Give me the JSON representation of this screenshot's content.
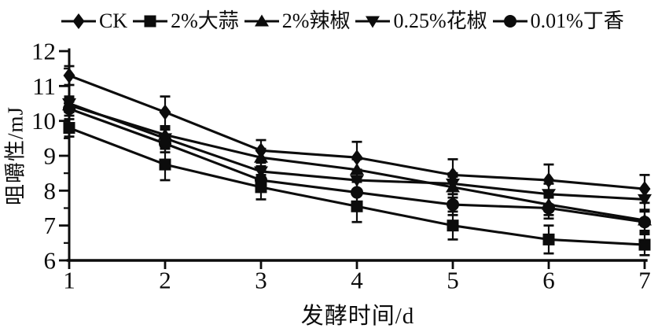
{
  "figure": {
    "background": "#ffffff",
    "ink_color": "#0c0c0c"
  },
  "chart_data": {
    "type": "line",
    "title": "",
    "xlabel": "发酵时间/d",
    "ylabel": "咀嚼性/mJ",
    "x": [
      1,
      2,
      3,
      4,
      5,
      6,
      7
    ],
    "x_tick_labels": [
      "1",
      "2",
      "3",
      "4",
      "5",
      "6",
      "7"
    ],
    "xlim": [
      1,
      7
    ],
    "ylim": [
      6,
      12
    ],
    "y_major_ticks": [
      6,
      7,
      8,
      9,
      10,
      11,
      12
    ],
    "y_minor_ticks": [
      6.5,
      7.5,
      8.5,
      9.5,
      10.5,
      11.5
    ],
    "grid": false,
    "error_bars": true,
    "legend_position": "top",
    "series": [
      {
        "name": "CK",
        "marker": "diamond",
        "values": [
          11.3,
          10.25,
          9.15,
          8.95,
          8.45,
          8.3,
          8.05
        ],
        "errors": [
          0.27,
          0.45,
          0.3,
          0.45,
          0.45,
          0.45,
          0.4
        ]
      },
      {
        "name": "2%大蒜",
        "marker": "square",
        "values": [
          9.8,
          8.75,
          8.1,
          7.55,
          7.0,
          6.6,
          6.45
        ],
        "errors": [
          0.25,
          0.45,
          0.35,
          0.45,
          0.4,
          0.4,
          0.3
        ]
      },
      {
        "name": "2%辣椒",
        "marker": "triangle-up",
        "values": [
          10.45,
          9.6,
          8.95,
          8.6,
          8.1,
          7.6,
          7.15
        ],
        "errors": [
          0.2,
          0.25,
          0.25,
          0.3,
          0.3,
          0.3,
          0.3
        ]
      },
      {
        "name": "0.25%花椒",
        "marker": "triangle-down",
        "values": [
          10.5,
          9.5,
          8.55,
          8.3,
          8.2,
          7.9,
          7.75
        ],
        "errors": [
          0.2,
          0.25,
          0.25,
          0.3,
          0.3,
          0.3,
          0.3
        ]
      },
      {
        "name": "0.01%丁香",
        "marker": "circle",
        "values": [
          10.35,
          9.35,
          8.3,
          7.95,
          7.6,
          7.5,
          7.1
        ],
        "errors": [
          0.2,
          0.25,
          0.3,
          0.3,
          0.3,
          0.3,
          0.3
        ]
      }
    ]
  }
}
